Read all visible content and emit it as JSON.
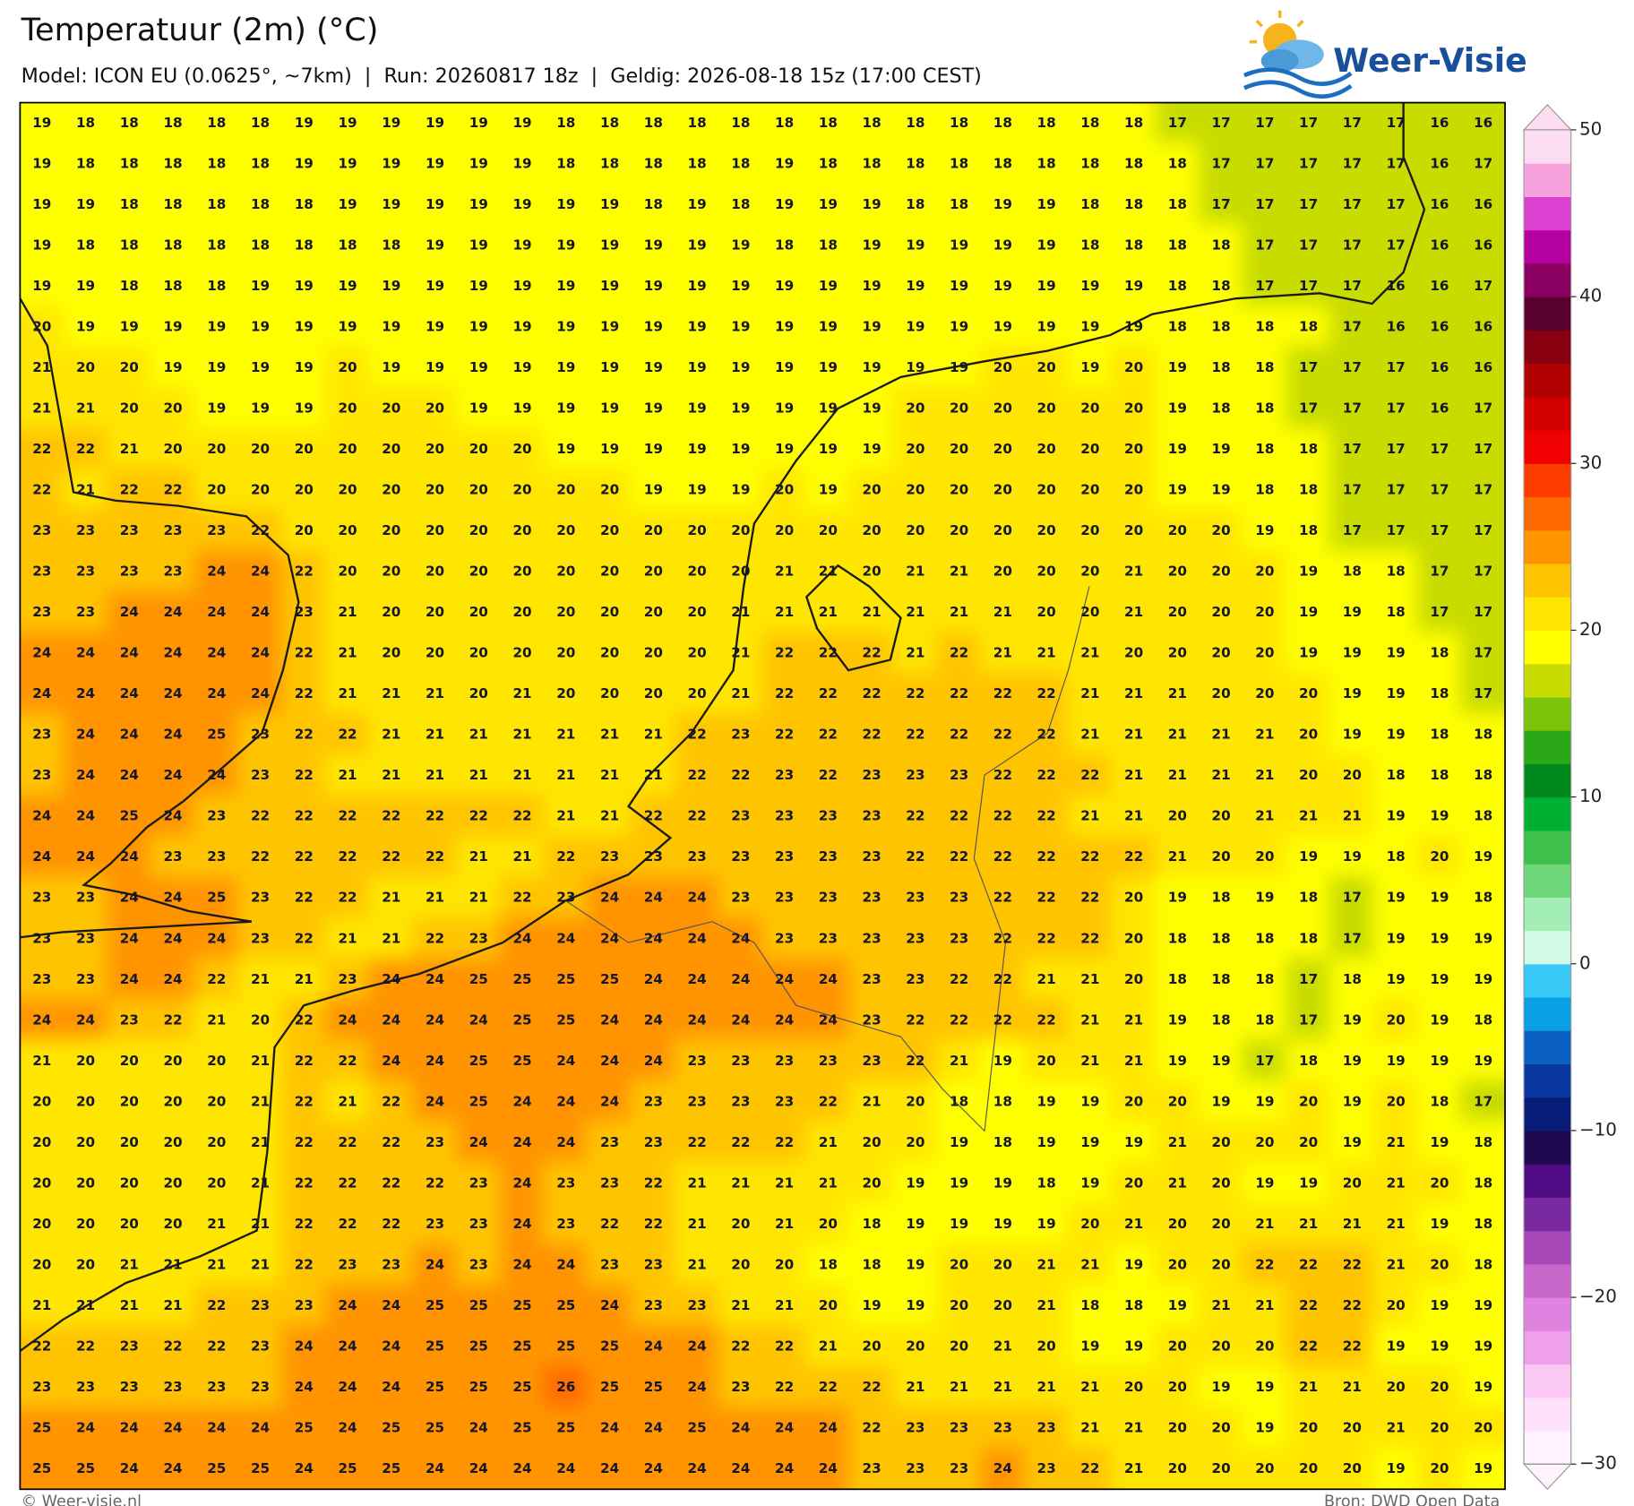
{
  "header": {
    "title": "Temperatuur (2m) (°C)",
    "subtitle": "Model: ICON EU (0.0625°, ~7km)  |  Run: 20260817 18z  |  Geldig: 2026-08-18 15z (17:00 CEST)",
    "logo": "Weer-Visie"
  },
  "map": {
    "grid": [
      [
        19,
        18,
        18,
        18,
        18,
        18,
        19,
        19,
        19,
        19,
        19,
        19,
        18,
        18,
        18,
        18,
        18,
        18,
        18,
        18,
        18,
        18,
        18,
        18,
        18,
        18,
        17,
        17,
        17,
        17,
        17,
        17,
        16,
        16
      ],
      [
        19,
        18,
        18,
        18,
        18,
        18,
        19,
        19,
        19,
        19,
        19,
        19,
        18,
        18,
        18,
        18,
        18,
        19,
        18,
        18,
        18,
        18,
        18,
        18,
        18,
        18,
        18,
        17,
        17,
        17,
        17,
        17,
        16,
        17
      ],
      [
        19,
        19,
        18,
        18,
        18,
        18,
        18,
        19,
        19,
        19,
        19,
        19,
        19,
        19,
        18,
        19,
        18,
        19,
        19,
        19,
        18,
        18,
        19,
        19,
        18,
        18,
        18,
        17,
        17,
        17,
        17,
        17,
        16,
        16
      ],
      [
        19,
        18,
        18,
        18,
        18,
        18,
        18,
        18,
        18,
        19,
        19,
        19,
        19,
        19,
        19,
        19,
        19,
        18,
        18,
        19,
        19,
        19,
        19,
        19,
        18,
        18,
        18,
        18,
        17,
        17,
        17,
        17,
        16,
        16
      ],
      [
        19,
        19,
        18,
        18,
        18,
        19,
        19,
        19,
        19,
        19,
        19,
        19,
        19,
        19,
        19,
        19,
        19,
        19,
        19,
        19,
        19,
        19,
        19,
        19,
        19,
        19,
        18,
        18,
        17,
        17,
        17,
        16,
        16,
        17
      ],
      [
        20,
        19,
        19,
        19,
        19,
        19,
        19,
        19,
        19,
        19,
        19,
        19,
        19,
        19,
        19,
        19,
        19,
        19,
        19,
        19,
        19,
        19,
        19,
        19,
        19,
        19,
        18,
        18,
        18,
        18,
        17,
        16,
        16,
        16
      ],
      [
        21,
        20,
        20,
        19,
        19,
        19,
        19,
        20,
        19,
        19,
        19,
        19,
        19,
        19,
        19,
        19,
        19,
        19,
        19,
        19,
        19,
        19,
        20,
        20,
        19,
        20,
        19,
        18,
        18,
        17,
        17,
        17,
        16,
        16
      ],
      [
        21,
        21,
        20,
        20,
        19,
        19,
        19,
        20,
        20,
        20,
        19,
        19,
        19,
        19,
        19,
        19,
        19,
        19,
        19,
        19,
        20,
        20,
        20,
        20,
        20,
        20,
        19,
        18,
        18,
        17,
        17,
        17,
        16,
        17
      ],
      [
        22,
        22,
        21,
        20,
        20,
        20,
        20,
        20,
        20,
        20,
        20,
        20,
        19,
        19,
        19,
        19,
        19,
        19,
        19,
        19,
        20,
        20,
        20,
        20,
        20,
        20,
        19,
        19,
        18,
        18,
        17,
        17,
        17,
        17
      ],
      [
        22,
        21,
        22,
        22,
        20,
        20,
        20,
        20,
        20,
        20,
        20,
        20,
        20,
        20,
        19,
        19,
        19,
        20,
        19,
        20,
        20,
        20,
        20,
        20,
        20,
        20,
        19,
        19,
        18,
        18,
        17,
        17,
        17,
        17
      ],
      [
        23,
        23,
        23,
        23,
        23,
        22,
        20,
        20,
        20,
        20,
        20,
        20,
        20,
        20,
        20,
        20,
        20,
        20,
        20,
        20,
        20,
        20,
        20,
        20,
        20,
        20,
        20,
        20,
        19,
        18,
        17,
        17,
        17,
        17
      ],
      [
        23,
        23,
        23,
        23,
        24,
        24,
        22,
        20,
        20,
        20,
        20,
        20,
        20,
        20,
        20,
        20,
        20,
        21,
        21,
        20,
        21,
        21,
        20,
        20,
        20,
        21,
        20,
        20,
        20,
        19,
        18,
        18,
        17,
        17
      ],
      [
        23,
        23,
        24,
        24,
        24,
        24,
        23,
        21,
        20,
        20,
        20,
        20,
        20,
        20,
        20,
        20,
        21,
        21,
        21,
        21,
        21,
        21,
        21,
        20,
        20,
        21,
        20,
        20,
        20,
        19,
        19,
        18,
        17,
        17
      ],
      [
        24,
        24,
        24,
        24,
        24,
        24,
        22,
        21,
        20,
        20,
        20,
        20,
        20,
        20,
        20,
        20,
        21,
        22,
        22,
        22,
        21,
        22,
        21,
        21,
        21,
        20,
        20,
        20,
        20,
        19,
        19,
        19,
        18,
        17
      ],
      [
        24,
        24,
        24,
        24,
        24,
        24,
        22,
        21,
        21,
        21,
        20,
        21,
        20,
        20,
        20,
        20,
        21,
        22,
        22,
        22,
        22,
        22,
        22,
        22,
        21,
        21,
        21,
        20,
        20,
        20,
        19,
        19,
        18,
        17
      ],
      [
        23,
        24,
        24,
        24,
        25,
        23,
        22,
        22,
        21,
        21,
        21,
        21,
        21,
        21,
        21,
        22,
        23,
        22,
        22,
        22,
        22,
        22,
        22,
        22,
        21,
        21,
        21,
        21,
        21,
        20,
        19,
        19,
        18,
        18
      ],
      [
        23,
        24,
        24,
        24,
        24,
        23,
        22,
        21,
        21,
        21,
        21,
        21,
        21,
        21,
        21,
        22,
        22,
        23,
        22,
        23,
        23,
        23,
        22,
        22,
        22,
        21,
        21,
        21,
        21,
        20,
        20,
        18,
        18,
        18
      ],
      [
        24,
        24,
        25,
        24,
        23,
        22,
        22,
        22,
        22,
        22,
        22,
        22,
        21,
        21,
        22,
        22,
        23,
        23,
        23,
        23,
        22,
        22,
        22,
        22,
        21,
        21,
        20,
        20,
        21,
        21,
        21,
        19,
        19,
        18
      ],
      [
        24,
        24,
        24,
        23,
        23,
        22,
        22,
        22,
        22,
        22,
        21,
        21,
        22,
        23,
        23,
        23,
        23,
        23,
        23,
        23,
        22,
        22,
        22,
        22,
        22,
        22,
        21,
        20,
        20,
        19,
        19,
        18,
        20,
        19
      ],
      [
        23,
        23,
        24,
        24,
        25,
        23,
        22,
        22,
        21,
        21,
        21,
        22,
        23,
        24,
        24,
        24,
        23,
        23,
        23,
        23,
        23,
        23,
        22,
        22,
        22,
        20,
        19,
        18,
        19,
        18,
        17,
        19,
        19,
        18
      ],
      [
        23,
        23,
        24,
        24,
        24,
        23,
        22,
        21,
        21,
        22,
        23,
        24,
        24,
        24,
        24,
        24,
        24,
        23,
        23,
        23,
        23,
        23,
        22,
        22,
        22,
        20,
        18,
        18,
        18,
        18,
        17,
        19,
        19,
        19
      ],
      [
        23,
        23,
        24,
        24,
        22,
        21,
        21,
        23,
        24,
        24,
        25,
        25,
        25,
        25,
        24,
        24,
        24,
        24,
        24,
        23,
        23,
        22,
        22,
        21,
        21,
        20,
        18,
        18,
        18,
        17,
        18,
        19,
        19,
        19
      ],
      [
        24,
        24,
        23,
        22,
        21,
        20,
        22,
        24,
        24,
        24,
        24,
        25,
        25,
        24,
        24,
        24,
        24,
        24,
        24,
        23,
        22,
        22,
        22,
        22,
        21,
        21,
        19,
        18,
        18,
        17,
        19,
        20,
        19,
        18
      ],
      [
        21,
        20,
        20,
        20,
        20,
        21,
        22,
        22,
        24,
        24,
        25,
        25,
        24,
        24,
        24,
        23,
        23,
        23,
        23,
        23,
        22,
        21,
        19,
        20,
        21,
        21,
        19,
        19,
        17,
        18,
        19,
        19,
        19,
        19
      ],
      [
        20,
        20,
        20,
        20,
        20,
        21,
        22,
        21,
        22,
        24,
        25,
        24,
        24,
        24,
        23,
        23,
        23,
        23,
        22,
        21,
        20,
        18,
        18,
        19,
        19,
        20,
        20,
        19,
        19,
        20,
        19,
        20,
        18,
        17
      ],
      [
        20,
        20,
        20,
        20,
        20,
        21,
        22,
        22,
        22,
        23,
        24,
        24,
        24,
        23,
        23,
        22,
        22,
        22,
        21,
        20,
        20,
        19,
        18,
        19,
        19,
        19,
        21,
        20,
        20,
        20,
        19,
        21,
        19,
        18
      ],
      [
        20,
        20,
        20,
        20,
        20,
        21,
        22,
        22,
        22,
        22,
        23,
        24,
        23,
        23,
        22,
        21,
        21,
        21,
        21,
        20,
        19,
        19,
        19,
        18,
        19,
        20,
        21,
        20,
        19,
        19,
        20,
        21,
        20,
        18
      ],
      [
        20,
        20,
        20,
        20,
        21,
        21,
        22,
        22,
        22,
        23,
        23,
        24,
        23,
        22,
        22,
        21,
        20,
        21,
        20,
        18,
        19,
        19,
        19,
        19,
        20,
        21,
        20,
        20,
        21,
        21,
        21,
        21,
        19,
        18
      ],
      [
        20,
        20,
        21,
        21,
        21,
        21,
        22,
        23,
        23,
        24,
        23,
        24,
        24,
        23,
        23,
        21,
        20,
        20,
        18,
        18,
        19,
        20,
        20,
        21,
        21,
        19,
        20,
        20,
        22,
        22,
        22,
        21,
        20,
        18
      ],
      [
        21,
        21,
        21,
        21,
        22,
        23,
        23,
        24,
        24,
        25,
        25,
        25,
        25,
        24,
        23,
        23,
        21,
        21,
        20,
        19,
        19,
        20,
        20,
        21,
        18,
        18,
        19,
        21,
        21,
        22,
        22,
        20,
        19,
        19
      ],
      [
        22,
        22,
        23,
        22,
        22,
        23,
        24,
        24,
        24,
        25,
        25,
        25,
        25,
        25,
        24,
        24,
        22,
        22,
        21,
        20,
        20,
        20,
        21,
        20,
        19,
        19,
        20,
        20,
        20,
        22,
        22,
        19,
        19,
        19
      ],
      [
        23,
        23,
        23,
        23,
        23,
        23,
        24,
        24,
        24,
        25,
        25,
        25,
        26,
        25,
        25,
        24,
        23,
        22,
        22,
        22,
        21,
        21,
        21,
        21,
        21,
        20,
        20,
        19,
        19,
        21,
        21,
        20,
        20,
        19
      ],
      [
        25,
        24,
        24,
        24,
        24,
        24,
        25,
        24,
        25,
        25,
        24,
        25,
        25,
        24,
        24,
        25,
        24,
        24,
        24,
        22,
        23,
        23,
        23,
        23,
        21,
        21,
        20,
        20,
        19,
        20,
        20,
        21,
        20,
        20
      ],
      [
        25,
        25,
        24,
        24,
        25,
        25,
        24,
        25,
        25,
        24,
        24,
        24,
        24,
        24,
        24,
        24,
        24,
        24,
        24,
        23,
        23,
        23,
        24,
        23,
        22,
        21,
        20,
        20,
        20,
        20,
        20,
        19,
        20,
        19
      ]
    ]
  },
  "colorbar": {
    "lim": [
      -30,
      50
    ],
    "colors": [
      "#fdf2fd",
      "#fde0fa",
      "#fbc8f5",
      "#f0a0ea",
      "#e082e0",
      "#c868cc",
      "#a848b8",
      "#7a2aa0",
      "#500c84",
      "#200850",
      "#061c78",
      "#0a38a0",
      "#0a60c0",
      "#0aa0e6",
      "#38c8f8",
      "#d2fae6",
      "#a2eeb4",
      "#6ed87a",
      "#3ec04c",
      "#00b030",
      "#008a1e",
      "#2aa818",
      "#7cc40a",
      "#c8dc00",
      "#ffff00",
      "#ffe600",
      "#ffc400",
      "#ff9400",
      "#ff6a00",
      "#ff3c00",
      "#f00000",
      "#d40000",
      "#b00000",
      "#880010",
      "#58002e",
      "#8a0060",
      "#b4009e",
      "#dc40d0",
      "#f6a0dc",
      "#fcdcf2"
    ],
    "ticks": [
      50,
      40,
      30,
      20,
      10,
      0,
      {
        "value": -10,
        "label": "−10"
      },
      {
        "value": -20,
        "label": "−20"
      },
      {
        "value": -30,
        "label": "−30"
      }
    ]
  },
  "footer": {
    "left": "© Weer-visie.nl",
    "right": "Bron: DWD Open Data"
  }
}
